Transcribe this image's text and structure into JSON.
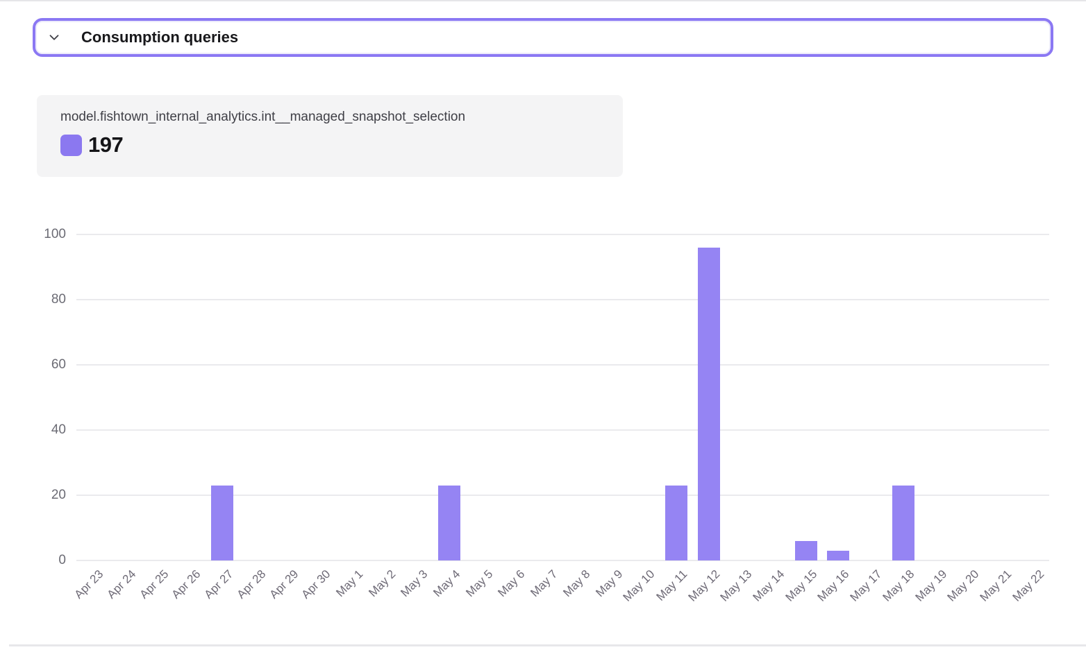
{
  "header": {
    "title": "Consumption queries"
  },
  "tooltip": {
    "label": "model.fishtown_internal_analytics.int__managed_snapshot_selection",
    "value": "197",
    "swatch_color": "#8b78f0"
  },
  "colors": {
    "accent_purple": "#8b78f3",
    "bar_purple": "#9584f3",
    "gridline": "#eaeaed",
    "axis_label": "#6e6a76"
  },
  "chart_data": {
    "type": "bar",
    "title": "",
    "xlabel": "",
    "ylabel": "",
    "series_name": "model.fishtown_internal_analytics.int__managed_snapshot_selection",
    "total": 197,
    "categories": [
      "Apr 23",
      "Apr 24",
      "Apr 25",
      "Apr 26",
      "Apr 27",
      "Apr 28",
      "Apr 29",
      "Apr 30",
      "May 1",
      "May 2",
      "May 3",
      "May 4",
      "May 5",
      "May 6",
      "May 7",
      "May 8",
      "May 9",
      "May 10",
      "May 11",
      "May 12",
      "May 13",
      "May 14",
      "May 15",
      "May 16",
      "May 17",
      "May 18",
      "May 19",
      "May 20",
      "May 21",
      "May 22"
    ],
    "values": [
      0,
      0,
      0,
      0,
      23,
      0,
      0,
      0,
      0,
      0,
      0,
      23,
      0,
      0,
      0,
      0,
      0,
      0,
      23,
      96,
      0,
      0,
      6,
      3,
      0,
      23,
      0,
      0,
      0,
      0
    ],
    "ylim": [
      0,
      100
    ],
    "yticks": [
      0,
      20,
      40,
      60,
      80,
      100
    ],
    "bar_color": "#9584f3",
    "grid": true,
    "legend_position": "top-left",
    "x_label_angle": -45
  }
}
